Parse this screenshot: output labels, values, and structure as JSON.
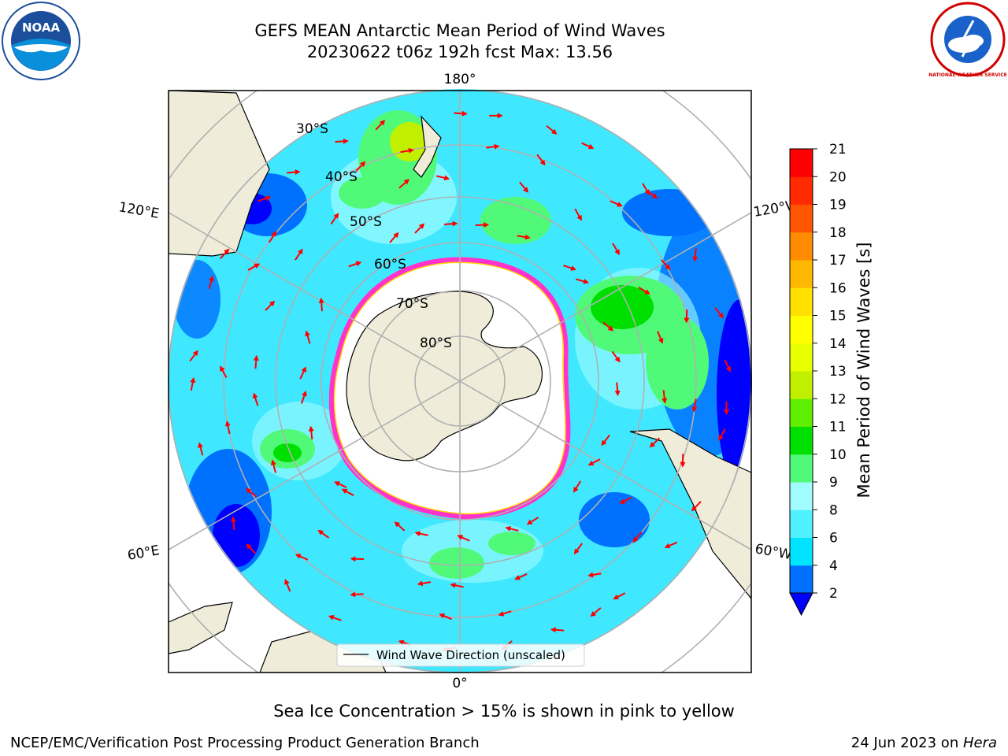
{
  "header": {
    "title_line1": "GEFS MEAN Antarctic Mean Period of Wind Waves",
    "title_line2": "20230622 t06z 192h fcst   Max: 13.56"
  },
  "logos": {
    "left": "noaa-logo",
    "right": "nws-logo",
    "noaa_text": "NOAA",
    "nws_text": "NATIONAL WEATHER SERVICE"
  },
  "map": {
    "projection": "south-polar-stereographic",
    "lon_labels": [
      "180°",
      "120°E",
      "120°W",
      "60°E",
      "60°W",
      "0°"
    ],
    "lat_labels": [
      "30°S",
      "40°S",
      "50°S",
      "60°S",
      "70°S",
      "80°S"
    ],
    "legend_label": "Wind Wave Direction (unscaled)",
    "colors": {
      "land": "#efedda",
      "sea_ice": "#ffffff",
      "ice_edge": [
        "#ff33cc",
        "#ffd700"
      ],
      "arrow": "#ff0000",
      "grid": "#b0b0b0"
    }
  },
  "colorbar": {
    "label": "Mean Period of Wind Waves [s]",
    "ticks": [
      "2",
      "4",
      "6",
      "8",
      "9",
      "10",
      "11",
      "12",
      "13",
      "14",
      "15",
      "16",
      "17",
      "18",
      "19",
      "20",
      "21"
    ],
    "colors": [
      "#0070ff",
      "#00e4ff",
      "#50f0ff",
      "#a0fcff",
      "#50fa78",
      "#00e000",
      "#60ee00",
      "#c0f000",
      "#e8ff00",
      "#ffff00",
      "#ffe000",
      "#ffb800",
      "#ff8c00",
      "#ff5500",
      "#ff2a00",
      "#ff0000"
    ],
    "extend_color": "#0000ff"
  },
  "note": "Sea Ice Concentration > 15% is shown in pink to yellow",
  "footer": {
    "left": "NCEP/EMC/Verification Post Processing Product Generation Branch",
    "date": "24 Jun 2023 on ",
    "host": "Hera"
  }
}
